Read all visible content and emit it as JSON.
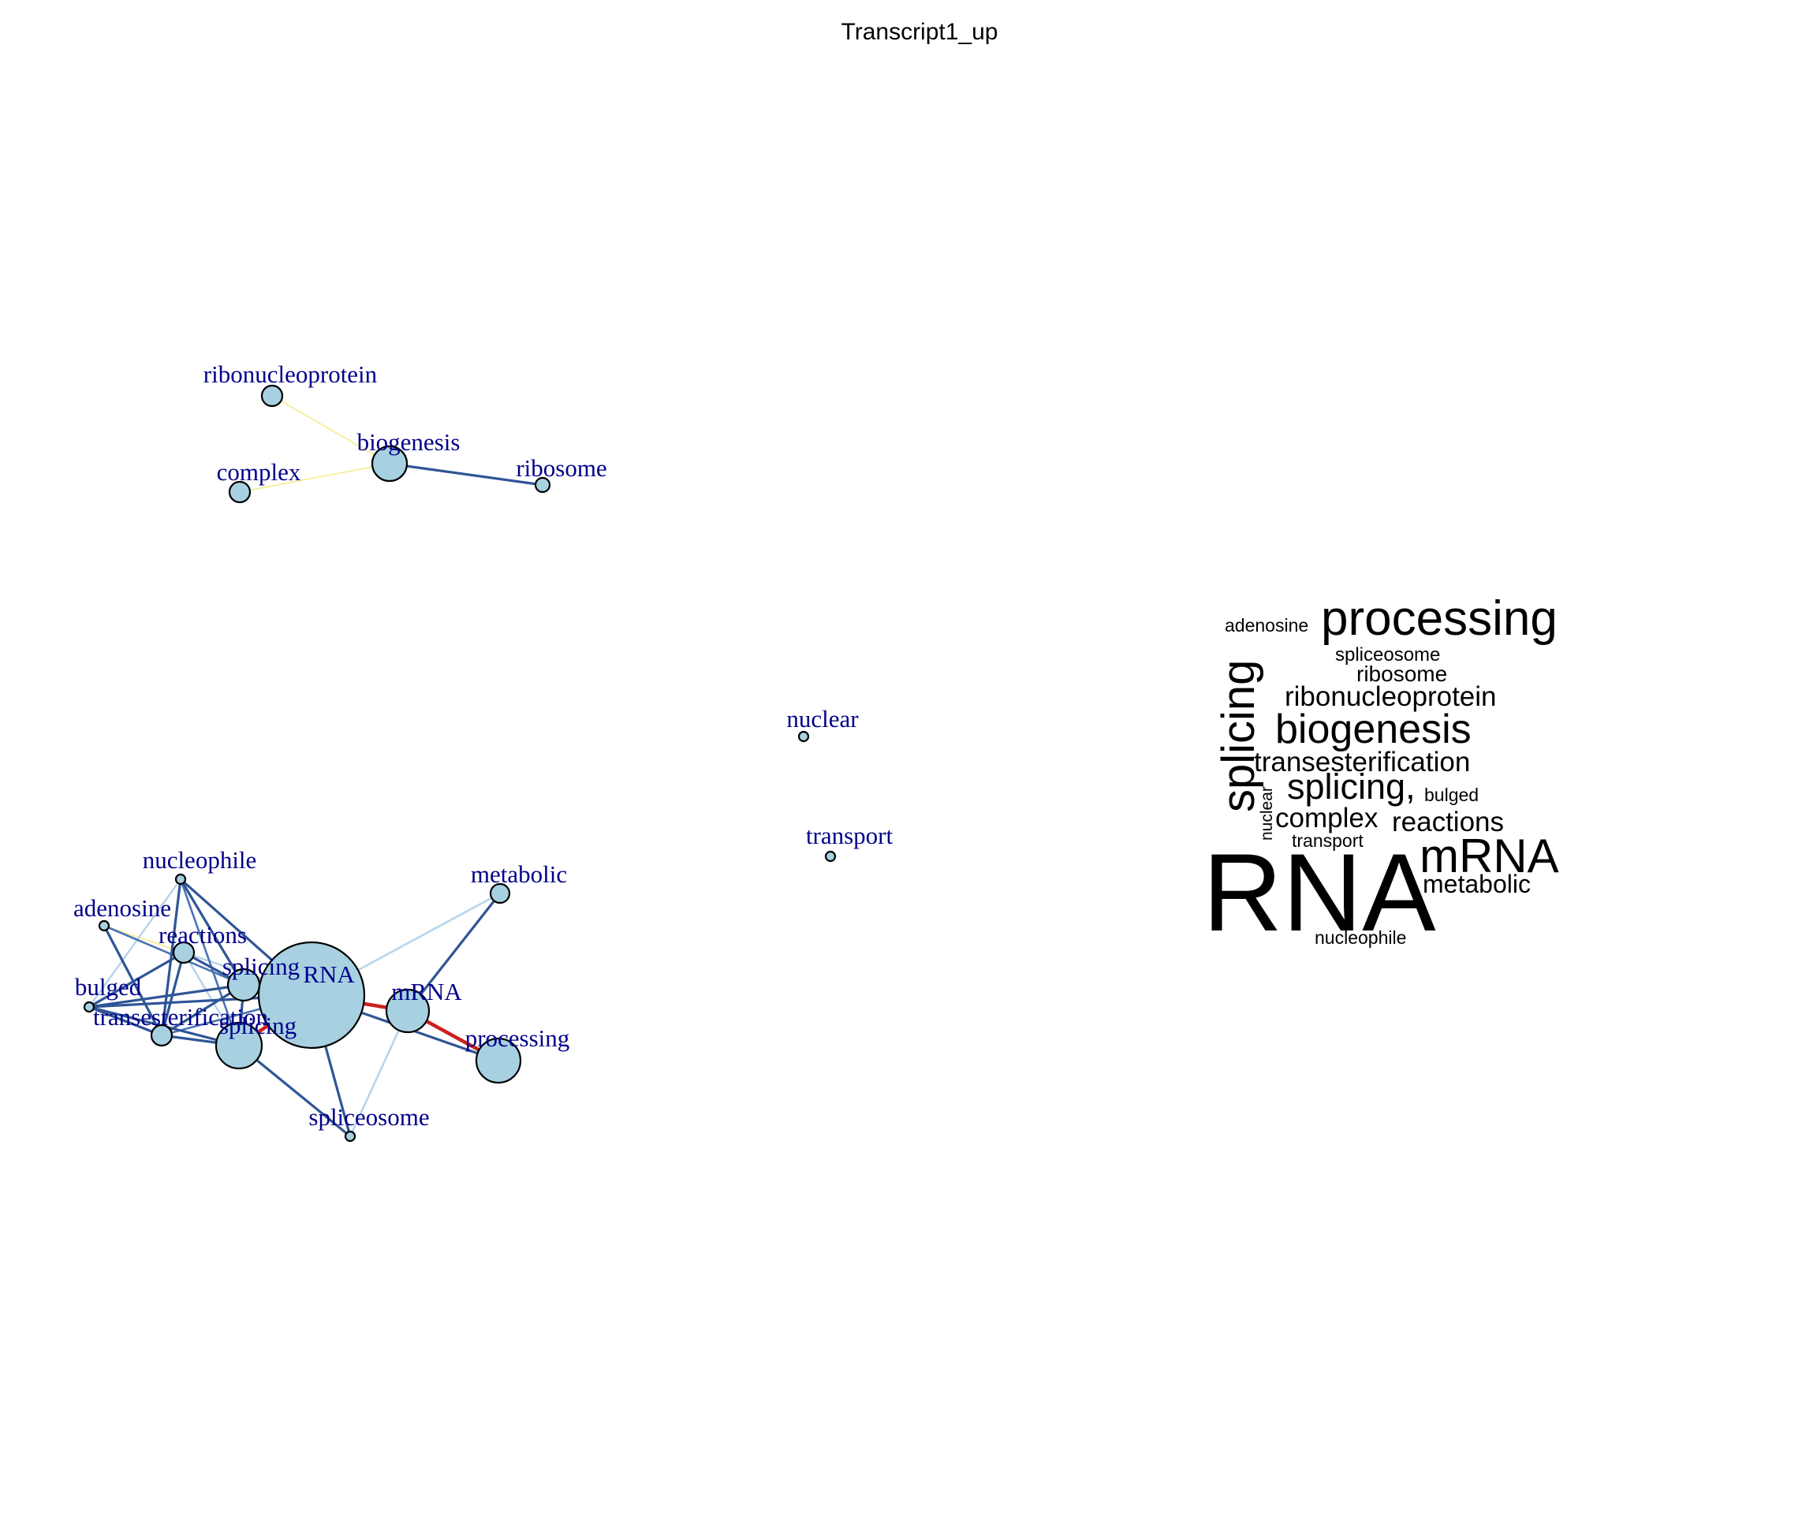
{
  "title": "Transcript1_up",
  "colors": {
    "node_fill": "#a7d1e1",
    "node_stroke": "#000000",
    "label": "#00008b",
    "edge_strong_blue": "#2f5597",
    "edge_mid_blue": "#4a73b5",
    "edge_light_blue": "#b9d5ea",
    "edge_yellow": "#f7f0a0",
    "edge_red": "#cc1f1f"
  },
  "network": {
    "nodes": [
      {
        "id": "ribonucleoprotein",
        "label": "ribonucleoprotein"
      },
      {
        "id": "biogenesis",
        "label": "biogenesis"
      },
      {
        "id": "complex",
        "label": "complex"
      },
      {
        "id": "ribosome",
        "label": "ribosome"
      },
      {
        "id": "nuclear",
        "label": "nuclear"
      },
      {
        "id": "transport",
        "label": "transport"
      },
      {
        "id": "nucleophile",
        "label": "nucleophile"
      },
      {
        "id": "metabolic",
        "label": "metabolic"
      },
      {
        "id": "adenosine",
        "label": "adenosine"
      },
      {
        "id": "reactions",
        "label": "reactions"
      },
      {
        "id": "splicing_comma",
        "label": "splicing"
      },
      {
        "id": "RNA",
        "label": "RNA"
      },
      {
        "id": "bulged",
        "label": "bulged"
      },
      {
        "id": "mRNA",
        "label": "mRNA"
      },
      {
        "id": "transesterification",
        "label": "transesterification"
      },
      {
        "id": "splicing",
        "label": "splicing"
      },
      {
        "id": "processing",
        "label": "processing"
      },
      {
        "id": "spliceosome",
        "label": "spliceosome"
      }
    ],
    "edges": [
      {
        "from": "ribonucleoprotein",
        "to": "biogenesis",
        "color": "yellow"
      },
      {
        "from": "complex",
        "to": "biogenesis",
        "color": "yellow"
      },
      {
        "from": "biogenesis",
        "to": "ribosome",
        "color": "strong_blue"
      },
      {
        "from": "RNA",
        "to": "mRNA",
        "color": "red"
      },
      {
        "from": "mRNA",
        "to": "processing",
        "color": "red"
      },
      {
        "from": "splicing",
        "to": "RNA",
        "color": "red"
      },
      {
        "from": "RNA",
        "to": "processing",
        "color": "strong_blue"
      },
      {
        "from": "RNA",
        "to": "metabolic",
        "color": "light_blue"
      },
      {
        "from": "mRNA",
        "to": "metabolic",
        "color": "strong_blue"
      },
      {
        "from": "RNA",
        "to": "spliceosome",
        "color": "strong_blue"
      },
      {
        "from": "mRNA",
        "to": "spliceosome",
        "color": "light_blue"
      },
      {
        "from": "nucleophile",
        "to": "RNA",
        "color": "strong_blue"
      },
      {
        "from": "nucleophile",
        "to": "transesterification",
        "color": "strong_blue"
      },
      {
        "from": "nucleophile",
        "to": "splicing_comma",
        "color": "strong_blue"
      },
      {
        "from": "nucleophile",
        "to": "splicing",
        "color": "mid_blue"
      },
      {
        "from": "nucleophile",
        "to": "bulged",
        "color": "light_blue"
      },
      {
        "from": "adenosine",
        "to": "reactions",
        "color": "yellow"
      },
      {
        "from": "adenosine",
        "to": "splicing_comma",
        "color": "mid_blue"
      },
      {
        "from": "adenosine",
        "to": "transesterification",
        "color": "strong_blue"
      },
      {
        "from": "reactions",
        "to": "splicing_comma",
        "color": "strong_blue"
      },
      {
        "from": "reactions",
        "to": "splicing",
        "color": "light_blue"
      },
      {
        "from": "reactions",
        "to": "transesterification",
        "color": "strong_blue"
      },
      {
        "from": "reactions",
        "to": "bulged",
        "color": "strong_blue"
      },
      {
        "from": "reactions",
        "to": "RNA",
        "color": "light_blue"
      },
      {
        "from": "splicing_comma",
        "to": "transesterification",
        "color": "strong_blue"
      },
      {
        "from": "splicing_comma",
        "to": "splicing",
        "color": "strong_blue"
      },
      {
        "from": "splicing_comma",
        "to": "bulged",
        "color": "strong_blue"
      },
      {
        "from": "bulged",
        "to": "transesterification",
        "color": "strong_blue"
      },
      {
        "from": "bulged",
        "to": "splicing",
        "color": "strong_blue"
      },
      {
        "from": "bulged",
        "to": "RNA",
        "color": "strong_blue"
      },
      {
        "from": "transesterification",
        "to": "splicing",
        "color": "strong_blue"
      },
      {
        "from": "transesterification",
        "to": "RNA",
        "color": "mid_blue"
      },
      {
        "from": "splicing",
        "to": "spliceosome",
        "color": "strong_blue"
      }
    ]
  },
  "word_cloud": {
    "words": [
      {
        "text": "adenosine",
        "weight": 1.0
      },
      {
        "text": "processing",
        "weight": 2.5
      },
      {
        "text": "spliceosome",
        "weight": 1.0
      },
      {
        "text": "ribosome",
        "weight": 1.2
      },
      {
        "text": "splicing",
        "weight": 2.3
      },
      {
        "text": "ribonucleoprotein",
        "weight": 1.4
      },
      {
        "text": "biogenesis",
        "weight": 2.0
      },
      {
        "text": "transesterification",
        "weight": 1.4
      },
      {
        "text": "splicing,",
        "weight": 1.8
      },
      {
        "text": "bulged",
        "weight": 0.9
      },
      {
        "text": "nuclear",
        "weight": 0.8
      },
      {
        "text": "complex",
        "weight": 1.4
      },
      {
        "text": "reactions",
        "weight": 1.4
      },
      {
        "text": "transport",
        "weight": 0.9
      },
      {
        "text": "mRNA",
        "weight": 2.8
      },
      {
        "text": "RNA",
        "weight": 6.0
      },
      {
        "text": "metabolic",
        "weight": 1.4
      },
      {
        "text": "nucleophile",
        "weight": 1.0
      }
    ]
  }
}
